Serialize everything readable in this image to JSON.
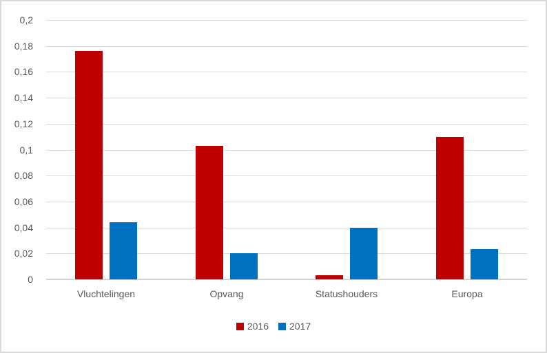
{
  "chart_data": {
    "type": "bar",
    "title": "",
    "xlabel": "",
    "ylabel": "",
    "categories": [
      "Vluchtelingen",
      "Opvang",
      "Statushouders",
      "Europa"
    ],
    "series": [
      {
        "name": "2016",
        "color": "#c00000",
        "values": [
          0.176,
          0.103,
          0.003,
          0.11
        ]
      },
      {
        "name": "2017",
        "color": "#0070c0",
        "values": [
          0.044,
          0.02,
          0.04,
          0.0235
        ]
      }
    ],
    "ylim": [
      0,
      0.2
    ],
    "ytick_step": 0.02,
    "ytick_labels": [
      "0",
      "0,02",
      "0,04",
      "0,06",
      "0,08",
      "0,1",
      "0,12",
      "0,14",
      "0,16",
      "0,18",
      "0,2"
    ],
    "grid": true,
    "legend_position": "bottom"
  },
  "colors": {
    "background": "#ffffff",
    "border": "#d9d9d9",
    "gridline": "#d9d9d9",
    "axis_line": "#d3d3d3",
    "text": "#595959",
    "series_2016": "#c00000",
    "series_2017": "#0070c0"
  }
}
